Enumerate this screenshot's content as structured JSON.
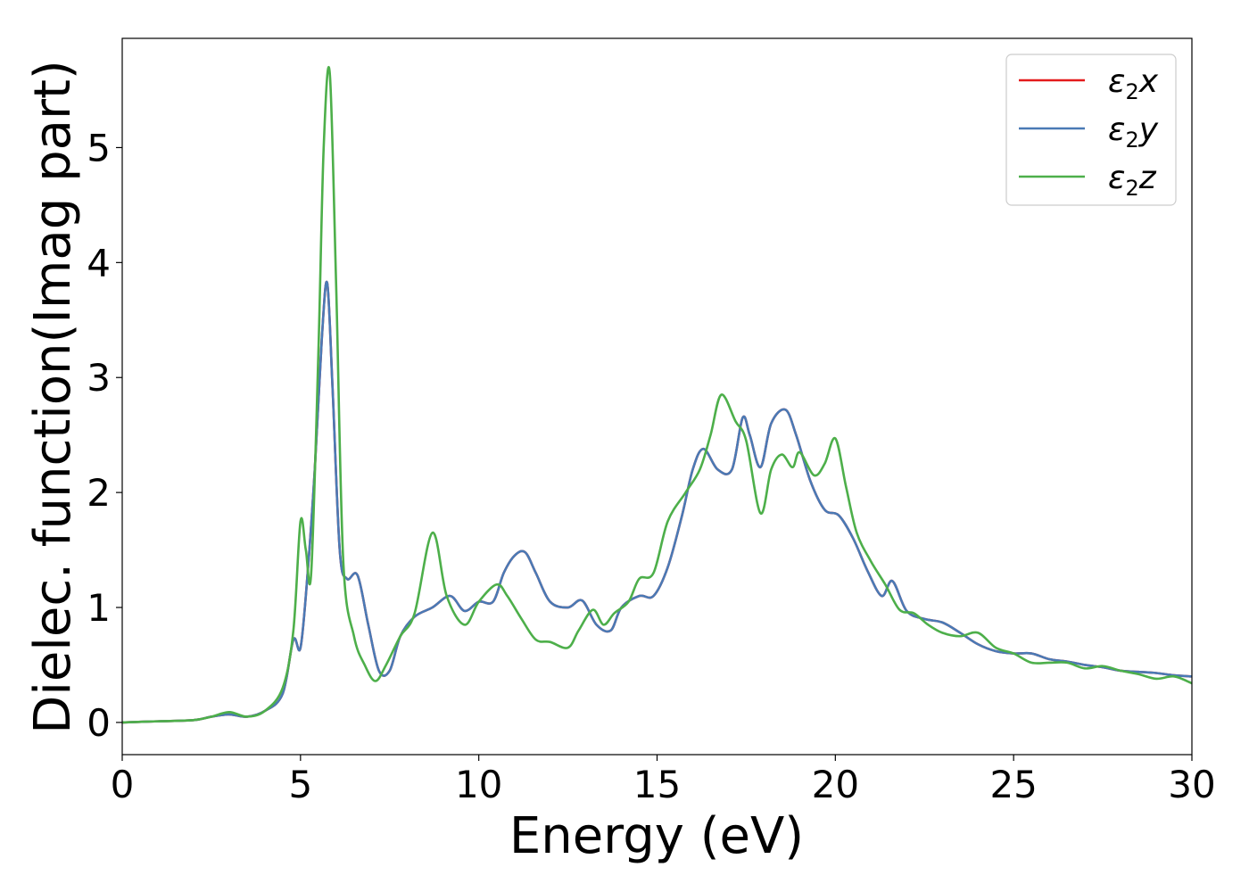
{
  "chart_data": {
    "type": "line",
    "xlabel": "Energy (eV)",
    "ylabel": "Dielec. function(Imag part)",
    "xlim": [
      0,
      30
    ],
    "ylim": [
      -0.28,
      5.95
    ],
    "xticks": [
      0,
      5,
      10,
      15,
      20,
      25,
      30
    ],
    "yticks": [
      0,
      1,
      2,
      3,
      4,
      5
    ],
    "grid": false,
    "legend_position": "top-right",
    "series": [
      {
        "name": "ε₂x",
        "legend_base": "ε",
        "legend_sub": "2",
        "legend_suffix": "x",
        "color": "#e41a1c",
        "x": [
          0,
          1,
          2,
          2.5,
          3,
          3.5,
          4,
          4.5,
          4.8,
          5.0,
          5.2,
          5.4,
          5.6,
          5.75,
          5.9,
          6.1,
          6.3,
          6.6,
          6.9,
          7.2,
          7.5,
          7.8,
          8.2,
          8.7,
          9.2,
          9.6,
          10.0,
          10.4,
          10.7,
          11.0,
          11.3,
          11.6,
          12.0,
          12.5,
          12.9,
          13.3,
          13.7,
          14.0,
          14.5,
          14.9,
          15.3,
          15.7,
          16.0,
          16.3,
          16.7,
          17.1,
          17.4,
          17.6,
          17.9,
          18.2,
          18.6,
          18.9,
          19.3,
          19.7,
          20.1,
          20.5,
          20.9,
          21.3,
          21.6,
          22.0,
          22.5,
          23.0,
          23.5,
          24.0,
          24.5,
          25.0,
          25.5,
          26.0,
          26.5,
          27.0,
          27.5,
          28.0,
          28.5,
          29.0,
          29.5,
          30.0
        ],
        "y": [
          0,
          0.01,
          0.02,
          0.05,
          0.07,
          0.05,
          0.1,
          0.25,
          0.72,
          0.65,
          1.3,
          2.2,
          3.35,
          3.82,
          2.9,
          1.5,
          1.25,
          1.28,
          0.85,
          0.45,
          0.45,
          0.75,
          0.92,
          1.0,
          1.1,
          0.97,
          1.05,
          1.05,
          1.3,
          1.45,
          1.48,
          1.3,
          1.05,
          1.0,
          1.06,
          0.85,
          0.8,
          1.0,
          1.1,
          1.1,
          1.35,
          1.8,
          2.2,
          2.38,
          2.2,
          2.2,
          2.65,
          2.5,
          2.22,
          2.6,
          2.72,
          2.5,
          2.1,
          1.85,
          1.8,
          1.6,
          1.32,
          1.1,
          1.23,
          0.97,
          0.9,
          0.87,
          0.78,
          0.68,
          0.62,
          0.6,
          0.6,
          0.55,
          0.53,
          0.5,
          0.48,
          0.45,
          0.44,
          0.43,
          0.41,
          0.4
        ]
      },
      {
        "name": "ε₂y",
        "legend_base": "ε",
        "legend_sub": "2",
        "legend_suffix": "y",
        "color": "#4a7ab5",
        "x": [
          0,
          1,
          2,
          2.5,
          3,
          3.5,
          4,
          4.5,
          4.8,
          5.0,
          5.2,
          5.4,
          5.6,
          5.75,
          5.9,
          6.1,
          6.3,
          6.6,
          6.9,
          7.2,
          7.5,
          7.8,
          8.2,
          8.7,
          9.2,
          9.6,
          10.0,
          10.4,
          10.7,
          11.0,
          11.3,
          11.6,
          12.0,
          12.5,
          12.9,
          13.3,
          13.7,
          14.0,
          14.5,
          14.9,
          15.3,
          15.7,
          16.0,
          16.3,
          16.7,
          17.1,
          17.4,
          17.6,
          17.9,
          18.2,
          18.6,
          18.9,
          19.3,
          19.7,
          20.1,
          20.5,
          20.9,
          21.3,
          21.6,
          22.0,
          22.5,
          23.0,
          23.5,
          24.0,
          24.5,
          25.0,
          25.5,
          26.0,
          26.5,
          27.0,
          27.5,
          28.0,
          28.5,
          29.0,
          29.5,
          30.0
        ],
        "y": [
          0,
          0.01,
          0.02,
          0.05,
          0.07,
          0.05,
          0.1,
          0.25,
          0.72,
          0.65,
          1.3,
          2.2,
          3.35,
          3.82,
          2.9,
          1.5,
          1.25,
          1.28,
          0.85,
          0.45,
          0.45,
          0.75,
          0.92,
          1.0,
          1.1,
          0.97,
          1.05,
          1.05,
          1.3,
          1.45,
          1.48,
          1.3,
          1.05,
          1.0,
          1.06,
          0.85,
          0.8,
          1.0,
          1.1,
          1.1,
          1.35,
          1.8,
          2.2,
          2.38,
          2.2,
          2.2,
          2.65,
          2.5,
          2.22,
          2.6,
          2.72,
          2.5,
          2.1,
          1.85,
          1.8,
          1.6,
          1.32,
          1.1,
          1.23,
          0.97,
          0.9,
          0.87,
          0.78,
          0.68,
          0.62,
          0.6,
          0.6,
          0.55,
          0.53,
          0.5,
          0.48,
          0.45,
          0.44,
          0.43,
          0.41,
          0.4
        ]
      },
      {
        "name": "ε₂z",
        "legend_base": "ε",
        "legend_sub": "2",
        "legend_suffix": "z",
        "color": "#4daf4a",
        "x": [
          0,
          1,
          2,
          2.5,
          3,
          3.5,
          4,
          4.5,
          4.8,
          5.0,
          5.15,
          5.3,
          5.5,
          5.65,
          5.82,
          6.0,
          6.2,
          6.5,
          6.8,
          7.1,
          7.4,
          7.8,
          8.2,
          8.7,
          9.1,
          9.6,
          10.0,
          10.5,
          10.8,
          11.2,
          11.6,
          12.0,
          12.5,
          12.8,
          13.2,
          13.5,
          13.8,
          14.2,
          14.5,
          14.9,
          15.3,
          15.8,
          16.2,
          16.5,
          16.8,
          17.2,
          17.5,
          17.9,
          18.2,
          18.5,
          18.8,
          19.0,
          19.4,
          19.7,
          20.0,
          20.3,
          20.6,
          21.0,
          21.4,
          21.8,
          22.2,
          22.6,
          23.0,
          23.5,
          24.0,
          24.5,
          25.0,
          25.5,
          26.0,
          26.5,
          27.0,
          27.5,
          28.0,
          28.5,
          29.0,
          29.5,
          30.0
        ],
        "y": [
          0,
          0.01,
          0.02,
          0.05,
          0.09,
          0.05,
          0.1,
          0.3,
          0.8,
          1.75,
          1.5,
          1.3,
          3.2,
          5.0,
          5.65,
          3.8,
          1.4,
          0.75,
          0.5,
          0.36,
          0.5,
          0.75,
          0.95,
          1.65,
          1.1,
          0.85,
          1.05,
          1.2,
          1.1,
          0.9,
          0.72,
          0.7,
          0.65,
          0.8,
          0.98,
          0.85,
          0.95,
          1.05,
          1.25,
          1.3,
          1.75,
          2.0,
          2.2,
          2.5,
          2.85,
          2.62,
          2.45,
          1.82,
          2.2,
          2.33,
          2.22,
          2.35,
          2.15,
          2.25,
          2.47,
          2.05,
          1.65,
          1.4,
          1.2,
          0.98,
          0.95,
          0.85,
          0.78,
          0.75,
          0.78,
          0.65,
          0.6,
          0.52,
          0.52,
          0.52,
          0.47,
          0.49,
          0.45,
          0.42,
          0.38,
          0.4,
          0.34
        ]
      }
    ]
  }
}
